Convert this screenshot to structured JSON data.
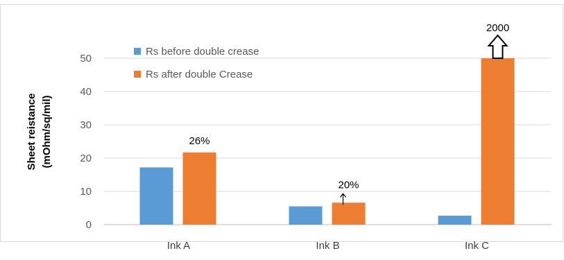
{
  "chart_data": {
    "type": "bar",
    "categories": [
      "Ink A",
      "Ink B",
      "Ink C"
    ],
    "series": [
      {
        "name": "Rs before double crease",
        "values": [
          17.2,
          5.5,
          2.7
        ],
        "color": "#5b9bd5"
      },
      {
        "name": "Rs after double Crease",
        "values": [
          21.7,
          6.6,
          50
        ],
        "color": "#ed7d31"
      }
    ],
    "ylabel_line1": "Sheet reistance",
    "ylabel_line2": "(mOhm/sq/mil)",
    "ylim": [
      0,
      50
    ],
    "yticks": [
      "0",
      "10",
      "20",
      "30",
      "40",
      "50"
    ],
    "grid": true,
    "legend_position": "top-left",
    "annotations": [
      {
        "text": "26%",
        "category": "Ink A",
        "series": 1,
        "arrow": "none"
      },
      {
        "text": "20%",
        "category": "Ink B",
        "series": 1,
        "arrow": "thin-up"
      },
      {
        "text": "2000",
        "category": "Ink C",
        "series": 1,
        "arrow": "block-up"
      }
    ]
  }
}
